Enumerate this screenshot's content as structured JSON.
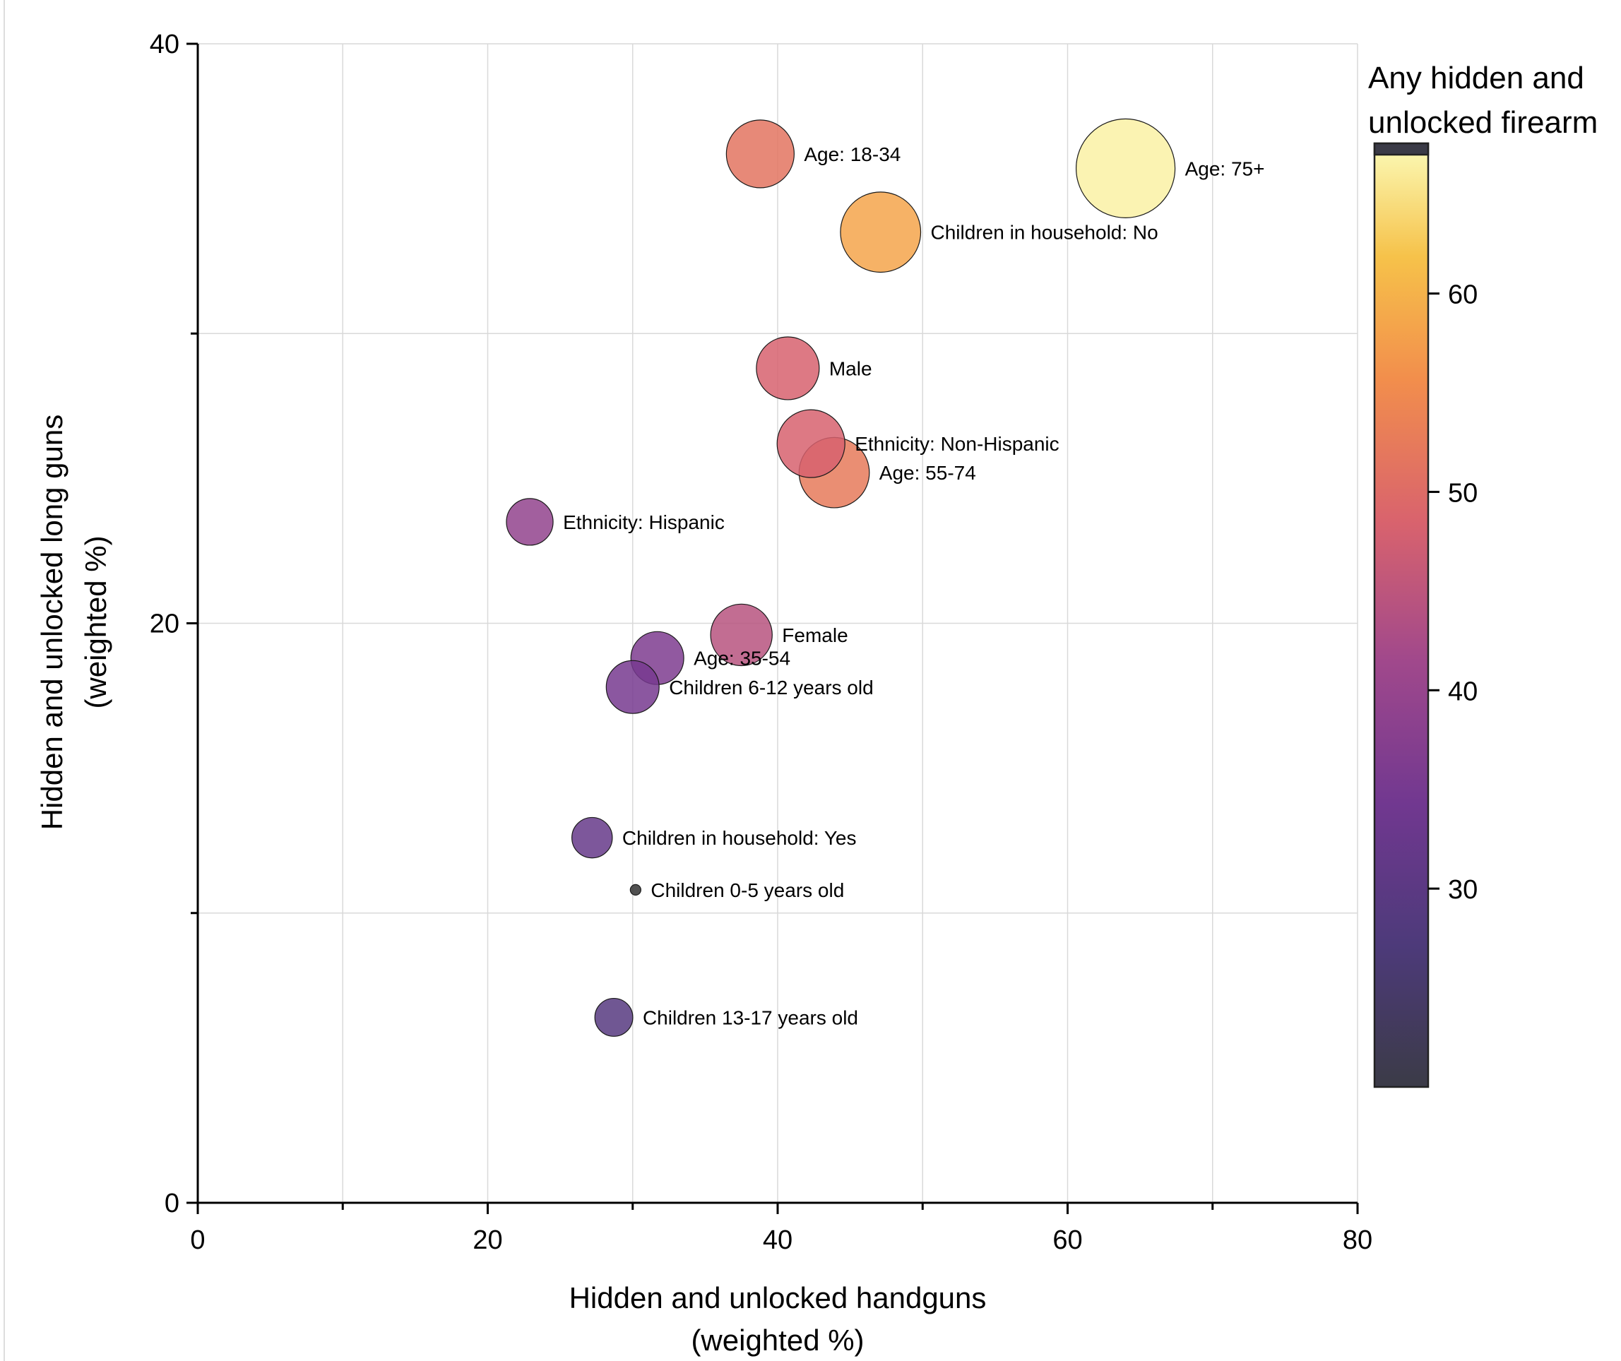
{
  "chart_data": {
    "type": "scatter",
    "xlabel": [
      "Hidden and unlocked handguns",
      "(weighted %)"
    ],
    "ylabel": [
      "Hidden and unlocked long guns",
      "(weighted %)"
    ],
    "xlim": [
      0,
      80
    ],
    "ylim": [
      0,
      40
    ],
    "x_ticks": [
      0,
      20,
      40,
      60,
      80
    ],
    "y_ticks": [
      0,
      20,
      40
    ],
    "grid": true,
    "colorbar": {
      "title": [
        "Any hidden and",
        "unlocked firearm"
      ],
      "range": [
        20,
        67
      ],
      "ticks": [
        30,
        40,
        50,
        60
      ],
      "colormap": "inferno"
    },
    "points": [
      {
        "label": "Age: 18-34",
        "x": 38.8,
        "y": 36.2,
        "color_value": 51,
        "size": 50
      },
      {
        "label": "Age: 75+",
        "x": 64.0,
        "y": 35.7,
        "color_value": 66,
        "size": 75
      },
      {
        "label": "Children in household: No",
        "x": 47.1,
        "y": 33.5,
        "color_value": 58,
        "size": 60
      },
      {
        "label": "Male",
        "x": 40.7,
        "y": 28.8,
        "color_value": 48,
        "size": 46
      },
      {
        "label": "Ethnicity: Non-Hispanic",
        "x": 42.3,
        "y": 26.2,
        "color_value": 48,
        "size": 50
      },
      {
        "label": "Age: 55-74",
        "x": 43.9,
        "y": 25.2,
        "color_value": 52,
        "size": 52
      },
      {
        "label": "Ethnicity: Hispanic",
        "x": 22.9,
        "y": 23.5,
        "color_value": 39,
        "size": 33
      },
      {
        "label": "Female",
        "x": 37.5,
        "y": 19.6,
        "color_value": 44,
        "size": 45
      },
      {
        "label": "Age: 35-54",
        "x": 31.7,
        "y": 18.8,
        "color_value": 36,
        "size": 38
      },
      {
        "label": "Children 6-12 years old",
        "x": 30.0,
        "y": 17.8,
        "color_value": 35,
        "size": 38
      },
      {
        "label": "Children in household: Yes",
        "x": 27.2,
        "y": 12.6,
        "color_value": 32,
        "size": 28
      },
      {
        "label": "Children 0-5 years old",
        "x": 30.2,
        "y": 10.8,
        "color_value": 20,
        "size": 4
      },
      {
        "label": "Children 13-17 years old",
        "x": 28.7,
        "y": 6.4,
        "color_value": 29,
        "size": 26
      }
    ]
  }
}
